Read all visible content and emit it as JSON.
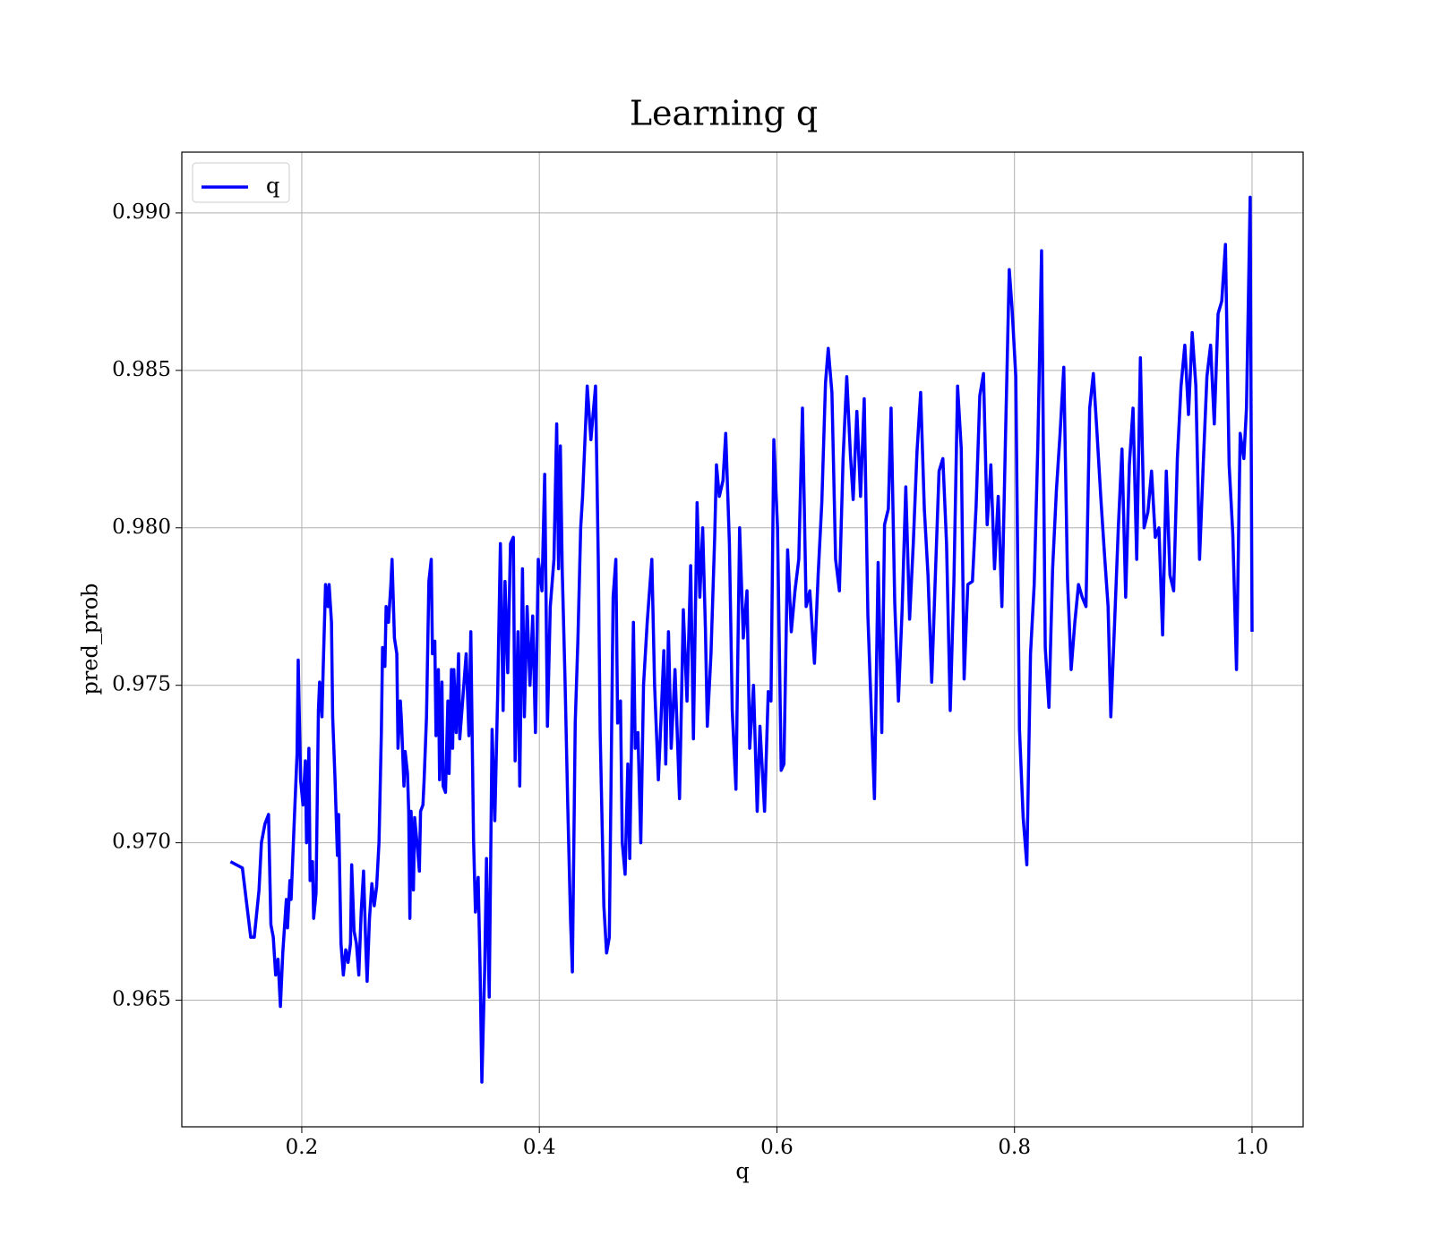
{
  "chart_data": {
    "type": "line",
    "title": "Learning q",
    "xlabel": "q",
    "ylabel": "pred_prob",
    "xlim": [
      0.099,
      1.043
    ],
    "ylim": [
      0.96098,
      0.99193
    ],
    "xticks": [
      0.2,
      0.4,
      0.6,
      0.8,
      {
        "value": 1,
        "label": "1.0"
      }
    ],
    "yticks": [
      0.965,
      {
        "value": 0.97,
        "label": "0.970"
      },
      0.975,
      {
        "value": 0.98,
        "label": "0.980"
      },
      0.985,
      {
        "value": 0.99,
        "label": "0.990"
      }
    ],
    "grid": true,
    "legend": "upper left",
    "x": [
      0.14,
      0.15,
      0.157,
      0.16,
      0.164,
      0.166,
      0.169,
      0.172,
      0.174,
      0.176,
      0.178,
      0.18,
      0.182,
      0.184,
      0.187,
      0.188,
      0.19,
      0.191,
      0.194,
      0.196,
      0.197,
      0.199,
      0.201,
      0.203,
      0.204,
      0.206,
      0.207,
      0.209,
      0.21,
      0.212,
      0.214,
      0.215,
      0.217,
      0.218,
      0.22,
      0.222,
      0.223,
      0.225,
      0.226,
      0.228,
      0.23,
      0.231,
      0.233,
      0.235,
      0.237,
      0.239,
      0.241,
      0.242,
      0.244,
      0.246,
      0.248,
      0.25,
      0.252,
      0.254,
      0.255,
      0.257,
      0.259,
      0.261,
      0.263,
      0.265,
      0.267,
      0.268,
      0.27,
      0.271,
      0.273,
      0.275,
      0.276,
      0.278,
      0.28,
      0.281,
      0.283,
      0.284,
      0.286,
      0.287,
      0.289,
      0.29,
      0.291,
      0.292,
      0.294,
      0.295,
      0.297,
      0.299,
      0.3,
      0.302,
      0.303,
      0.305,
      0.307,
      0.309,
      0.31,
      0.312,
      0.313,
      0.315,
      0.316,
      0.318,
      0.319,
      0.321,
      0.323,
      0.324,
      0.326,
      0.327,
      0.328,
      0.33,
      0.332,
      0.333,
      0.3384,
      0.3407,
      0.3423,
      0.3446,
      0.3462,
      0.3485,
      0.3501,
      0.3516,
      0.354,
      0.3555,
      0.3578,
      0.3602,
      0.3625,
      0.3649,
      0.3672,
      0.3695,
      0.3711,
      0.3734,
      0.3757,
      0.3781,
      0.3796,
      0.382,
      0.3835,
      0.3858,
      0.3874,
      0.3897,
      0.3921,
      0.3944,
      0.3967,
      0.3991,
      0.4022,
      0.4045,
      0.4068,
      0.4092,
      0.4123,
      0.4146,
      0.4162,
      0.4177,
      0.4193,
      0.4216,
      0.4239,
      0.4263,
      0.4278,
      0.4302,
      0.4325,
      0.4348,
      0.4364,
      0.4403,
      0.4434,
      0.4473,
      0.4496,
      0.4512,
      0.4543,
      0.4566,
      0.4589,
      0.4621,
      0.4644,
      0.4659,
      0.4683,
      0.4698,
      0.4722,
      0.4745,
      0.4761,
      0.4792,
      0.4807,
      0.483,
      0.4854,
      0.4877,
      0.4908,
      0.4947,
      0.497,
      0.5002,
      0.5025,
      0.5048,
      0.5064,
      0.5087,
      0.511,
      0.5142,
      0.518,
      0.5212,
      0.5243,
      0.5274,
      0.5297,
      0.5328,
      0.5351,
      0.5375,
      0.5398,
      0.5414,
      0.5445,
      0.5476,
      0.5491,
      0.5515,
      0.5546,
      0.5569,
      0.56,
      0.5624,
      0.5655,
      0.5686,
      0.5717,
      0.5748,
      0.5771,
      0.5803,
      0.5834,
      0.5857,
      0.5896,
      0.5927,
      0.595,
      0.5974,
      0.6005,
      0.6036,
      0.6059,
      0.609,
      0.6121,
      0.6152,
      0.6184,
      0.6215,
      0.6246,
      0.6277,
      0.6316,
      0.6347,
      0.6378,
      0.6409,
      0.6432,
      0.6463,
      0.6494,
      0.6526,
      0.6557,
      0.6588,
      0.6619,
      0.6642,
      0.6673,
      0.6704,
      0.6735,
      0.6766,
      0.6798,
      0.6821,
      0.6852,
      0.6883,
      0.6906,
      0.6938,
      0.6961,
      0.6992,
      0.7023,
      0.7054,
      0.7085,
      0.7117,
      0.7148,
      0.7179,
      0.721,
      0.7241,
      0.7272,
      0.7303,
      0.7334,
      0.7365,
      0.7397,
      0.7428,
      0.7459,
      0.749,
      0.7521,
      0.7552,
      0.7576,
      0.7607,
      0.7646,
      0.7677,
      0.7708,
      0.7739,
      0.777,
      0.7801,
      0.7832,
      0.7863,
      0.7894,
      0.7925,
      0.7956,
      0.7979,
      0.8011,
      0.8042,
      0.8073,
      0.8104,
      0.8135,
      0.8166,
      0.8197,
      0.8228,
      0.8259,
      0.829,
      0.8321,
      0.8353,
      0.8384,
      0.8415,
      0.8446,
      0.8477,
      0.8508,
      0.8539,
      0.857,
      0.8602,
      0.8633,
      0.8664,
      0.8695,
      0.8726,
      0.8757,
      0.8788,
      0.8811,
      0.8843,
      0.8874,
      0.8905,
      0.8936,
      0.8967,
      0.8998,
      0.9029,
      0.906,
      0.9091,
      0.9123,
      0.9154,
      0.9185,
      0.9216,
      0.9247,
      0.9278,
      0.9309,
      0.934,
      0.9371,
      0.9402,
      0.9434,
      0.9465,
      0.9496,
      0.9527,
      0.9558,
      0.9589,
      0.962,
      0.9651,
      0.9682,
      0.9714,
      0.9745,
      0.9776,
      0.9807,
      0.9838,
      0.9869,
      0.99,
      0.9931,
      0.9953,
      0.9984,
      1.0
    ],
    "series": [
      {
        "name": "q",
        "color": "#0000ff",
        "values": [
          0.9694,
          0.9692,
          0.967,
          0.967,
          0.9685,
          0.97,
          0.9706,
          0.9709,
          0.9674,
          0.967,
          0.9658,
          0.9663,
          0.9648,
          0.9665,
          0.9682,
          0.9673,
          0.9688,
          0.9682,
          0.971,
          0.9728,
          0.9758,
          0.972,
          0.9712,
          0.9726,
          0.97,
          0.973,
          0.9688,
          0.9694,
          0.9676,
          0.9684,
          0.9742,
          0.9751,
          0.974,
          0.9755,
          0.9782,
          0.9775,
          0.9782,
          0.977,
          0.974,
          0.972,
          0.9696,
          0.9709,
          0.9668,
          0.9658,
          0.9666,
          0.9662,
          0.9668,
          0.9693,
          0.9672,
          0.9668,
          0.9658,
          0.9678,
          0.9691,
          0.9666,
          0.9656,
          0.9676,
          0.9687,
          0.968,
          0.9686,
          0.97,
          0.9735,
          0.9762,
          0.9756,
          0.9775,
          0.977,
          0.9782,
          0.979,
          0.9765,
          0.976,
          0.973,
          0.9745,
          0.9738,
          0.9718,
          0.9729,
          0.9722,
          0.971,
          0.9676,
          0.971,
          0.9685,
          0.9708,
          0.97,
          0.9691,
          0.971,
          0.9712,
          0.972,
          0.974,
          0.9783,
          0.979,
          0.976,
          0.9764,
          0.9734,
          0.9755,
          0.972,
          0.9751,
          0.9718,
          0.9716,
          0.9745,
          0.9722,
          0.9755,
          0.973,
          0.9755,
          0.9735,
          0.976,
          0.9733,
          0.976,
          0.9734,
          0.9767,
          0.9701,
          0.9678,
          0.9689,
          0.966,
          0.9624,
          0.966,
          0.9695,
          0.9651,
          0.9736,
          0.9707,
          0.9747,
          0.9795,
          0.9742,
          0.9783,
          0.9754,
          0.9795,
          0.9797,
          0.9726,
          0.9767,
          0.9718,
          0.9787,
          0.974,
          0.9775,
          0.975,
          0.9772,
          0.9735,
          0.979,
          0.978,
          0.9817,
          0.9737,
          0.9775,
          0.979,
          0.9833,
          0.9787,
          0.9826,
          0.9786,
          0.9752,
          0.9712,
          0.9675,
          0.9659,
          0.9738,
          0.9765,
          0.98,
          0.981,
          0.9845,
          0.9828,
          0.9845,
          0.979,
          0.9735,
          0.968,
          0.9665,
          0.967,
          0.9778,
          0.979,
          0.9738,
          0.9745,
          0.97,
          0.969,
          0.9725,
          0.9695,
          0.977,
          0.973,
          0.9735,
          0.97,
          0.975,
          0.977,
          0.979,
          0.975,
          0.972,
          0.974,
          0.9761,
          0.9725,
          0.9767,
          0.973,
          0.9755,
          0.9714,
          0.9774,
          0.9745,
          0.9788,
          0.9733,
          0.9808,
          0.9778,
          0.98,
          0.9768,
          0.9737,
          0.976,
          0.9797,
          0.982,
          0.981,
          0.9815,
          0.983,
          0.9795,
          0.9742,
          0.9717,
          0.98,
          0.9765,
          0.978,
          0.973,
          0.975,
          0.971,
          0.9737,
          0.971,
          0.9748,
          0.9745,
          0.9828,
          0.98,
          0.9723,
          0.9725,
          0.9793,
          0.9767,
          0.978,
          0.979,
          0.9838,
          0.9775,
          0.978,
          0.9757,
          0.9785,
          0.9808,
          0.9846,
          0.9857,
          0.9843,
          0.979,
          0.978,
          0.9822,
          0.9848,
          0.9823,
          0.9809,
          0.9837,
          0.981,
          0.9841,
          0.9772,
          0.9738,
          0.9714,
          0.9789,
          0.9735,
          0.9801,
          0.9806,
          0.9838,
          0.9776,
          0.9745,
          0.9774,
          0.9813,
          0.9771,
          0.9795,
          0.9824,
          0.9843,
          0.9806,
          0.9785,
          0.9751,
          0.9785,
          0.9818,
          0.9822,
          0.9795,
          0.9742,
          0.9783,
          0.9845,
          0.9825,
          0.9752,
          0.9782,
          0.9783,
          0.9807,
          0.9842,
          0.9849,
          0.9801,
          0.982,
          0.9787,
          0.981,
          0.9775,
          0.983,
          0.9882,
          0.987,
          0.9848,
          0.9736,
          0.9708,
          0.9693,
          0.976,
          0.9782,
          0.9827,
          0.9888,
          0.9762,
          0.9743,
          0.9787,
          0.9812,
          0.983,
          0.9851,
          0.9784,
          0.9755,
          0.977,
          0.9782,
          0.9778,
          0.9775,
          0.9838,
          0.9849,
          0.983,
          0.981,
          0.9792,
          0.9775,
          0.974,
          0.977,
          0.98,
          0.9825,
          0.9778,
          0.982,
          0.9838,
          0.979,
          0.9854,
          0.98,
          0.9805,
          0.9818,
          0.9797,
          0.98,
          0.9766,
          0.9818,
          0.9785,
          0.978,
          0.9822,
          0.9845,
          0.9858,
          0.9836,
          0.9862,
          0.9845,
          0.979,
          0.982,
          0.9848,
          0.9858,
          0.9833,
          0.9868,
          0.9872,
          0.989,
          0.982,
          0.9798,
          0.9755,
          0.983,
          0.9822,
          0.9838,
          0.9905,
          0.9767
        ]
      }
    ]
  }
}
